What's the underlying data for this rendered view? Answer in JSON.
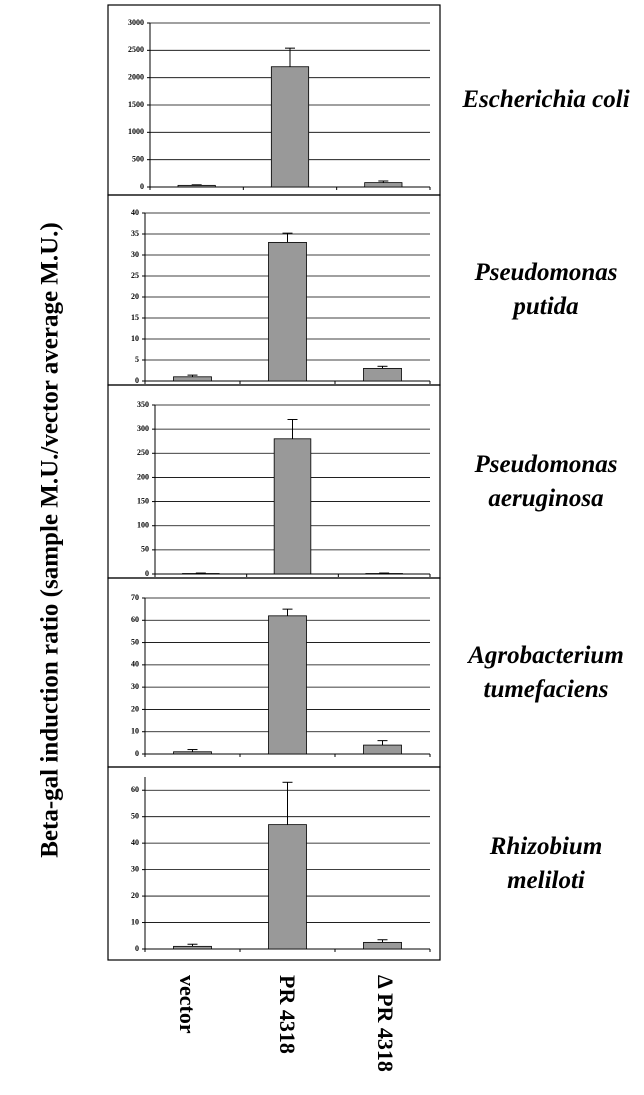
{
  "ylabel": "Beta-gal induction ratio (sample M.U./vector  average M.U.)",
  "categories": [
    "vector",
    "PR 4318",
    "Δ PR 4318"
  ],
  "chart_data": [
    {
      "type": "bar",
      "title": "Escherichia coli",
      "color": "#999999",
      "values": [
        30,
        2200,
        80
      ],
      "errors": [
        10,
        340,
        30
      ],
      "ylim": [
        0,
        3000
      ],
      "yticks": [
        0,
        500,
        1000,
        1500,
        2000,
        2500,
        3000
      ],
      "grid": true
    },
    {
      "type": "bar",
      "title": "Pseudomonas putida",
      "color": "#999999",
      "values": [
        1,
        33,
        3
      ],
      "errors": [
        0.4,
        2.2,
        0.5
      ],
      "ylim": [
        0,
        40
      ],
      "yticks": [
        0,
        5,
        10,
        15,
        20,
        25,
        30,
        35,
        40
      ],
      "grid": true
    },
    {
      "type": "bar",
      "title": "Pseudomonas aeruginosa",
      "color": "#999999",
      "values": [
        1,
        280,
        1
      ],
      "errors": [
        1,
        40,
        1
      ],
      "ylim": [
        0,
        350
      ],
      "yticks": [
        0,
        50,
        100,
        150,
        200,
        250,
        300,
        350
      ],
      "grid": true
    },
    {
      "type": "bar",
      "title": "Agrobacterium tumefaciens",
      "color": "#999999",
      "values": [
        1,
        62,
        4
      ],
      "errors": [
        1,
        3,
        2
      ],
      "ylim": [
        0,
        70
      ],
      "yticks": [
        0,
        10,
        20,
        30,
        40,
        50,
        60,
        70
      ],
      "grid": true
    },
    {
      "type": "bar",
      "title": "Rhizobium meliloti",
      "color": "#999999",
      "values": [
        1,
        47,
        2.5
      ],
      "errors": [
        0.8,
        16,
        1
      ],
      "ylim": [
        0,
        65
      ],
      "yticks": [
        0,
        10,
        20,
        30,
        40,
        50,
        60
      ],
      "grid": true
    }
  ]
}
